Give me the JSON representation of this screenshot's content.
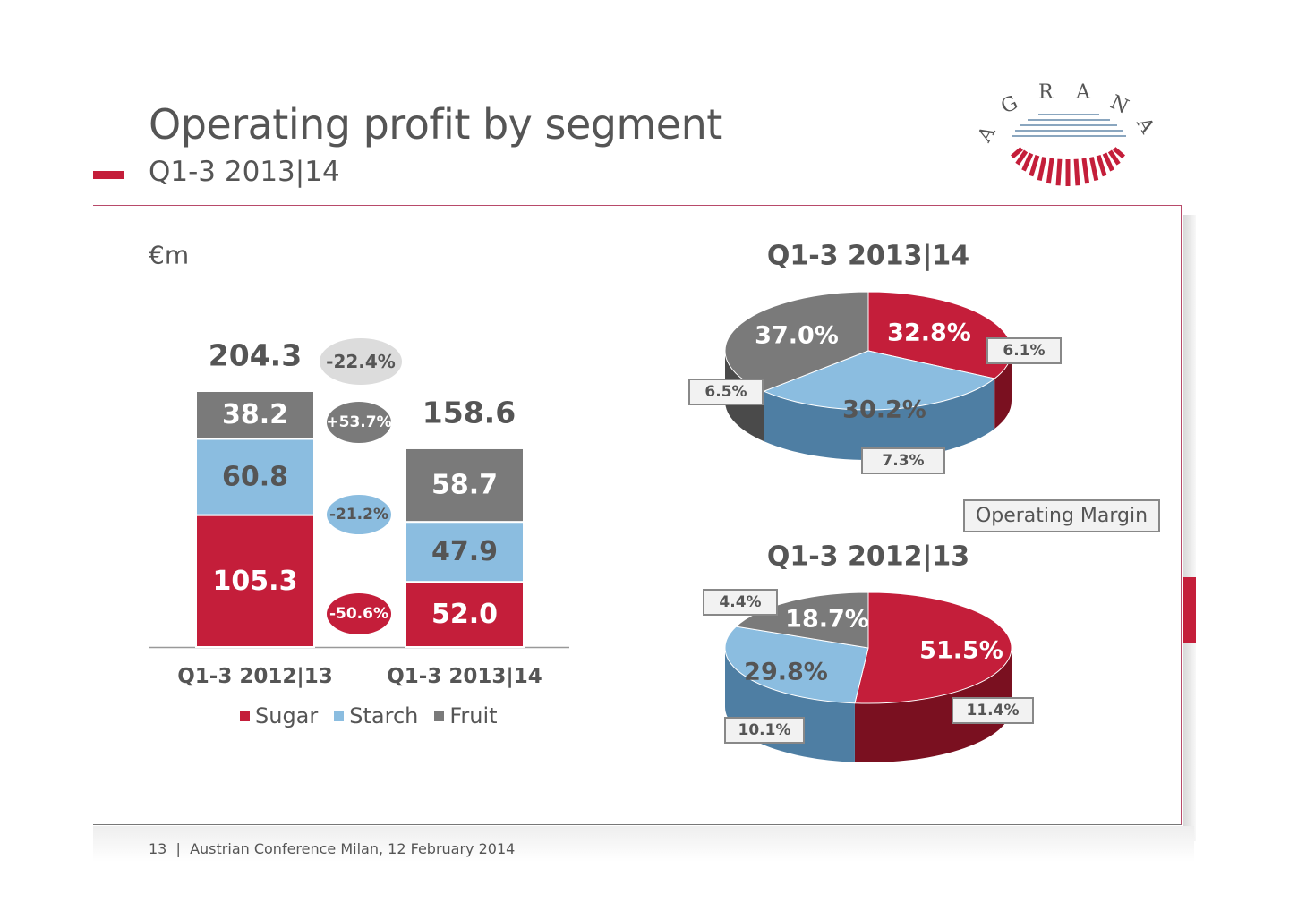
{
  "header": {
    "title": "Operating profit by segment",
    "subtitle": "Q1-3 2013|14"
  },
  "logo": {
    "text": "AGRANA"
  },
  "footer": {
    "page": "13",
    "separator": "|",
    "text": "Austrian Conference Milan, 12 February 2014"
  },
  "colors": {
    "sugar": "#c41e3a",
    "starch": "#8bbde0",
    "fruit": "#7a7a7a",
    "accent": "#c41e3a"
  },
  "chart_data": [
    {
      "type": "bar",
      "stacked": true,
      "unit_label": "€m",
      "categories": [
        "Q1-3 2012|13",
        "Q1-3 2013|14"
      ],
      "series": [
        {
          "name": "Sugar",
          "values": [
            105.3,
            52.0
          ],
          "labels": [
            "105.3",
            "52.0"
          ]
        },
        {
          "name": "Starch",
          "values": [
            60.8,
            47.9
          ],
          "labels": [
            "60.8",
            "47.9"
          ]
        },
        {
          "name": "Fruit",
          "values": [
            38.2,
            58.7
          ],
          "labels": [
            "38.2",
            "58.7"
          ]
        }
      ],
      "totals": [
        "204.3",
        "158.6"
      ],
      "changes": {
        "total": "-22.4%",
        "fruit": "+53.7%",
        "starch": "-21.2%",
        "sugar": "-50.6%"
      },
      "legend": [
        "Sugar",
        "Starch",
        "Fruit"
      ]
    },
    {
      "type": "pie",
      "title": "Q1-3 2013|14",
      "slices": [
        {
          "name": "Sugar",
          "value": 32.8,
          "label": "32.8%",
          "margin": "6.1%"
        },
        {
          "name": "Starch",
          "value": 30.2,
          "label": "30.2%",
          "margin": "7.3%"
        },
        {
          "name": "Fruit",
          "value": 37.0,
          "label": "37.0%",
          "margin": "6.5%"
        }
      ]
    },
    {
      "type": "pie",
      "title": "Q1-3 2012|13",
      "slices": [
        {
          "name": "Sugar",
          "value": 51.5,
          "label": "51.5%",
          "margin": "11.4%"
        },
        {
          "name": "Starch",
          "value": 29.8,
          "label": "29.8%",
          "margin": "10.1%"
        },
        {
          "name": "Fruit",
          "value": 18.7,
          "label": "18.7%",
          "margin": "4.4%"
        }
      ]
    }
  ],
  "operating_margin_label": "Operating Margin"
}
